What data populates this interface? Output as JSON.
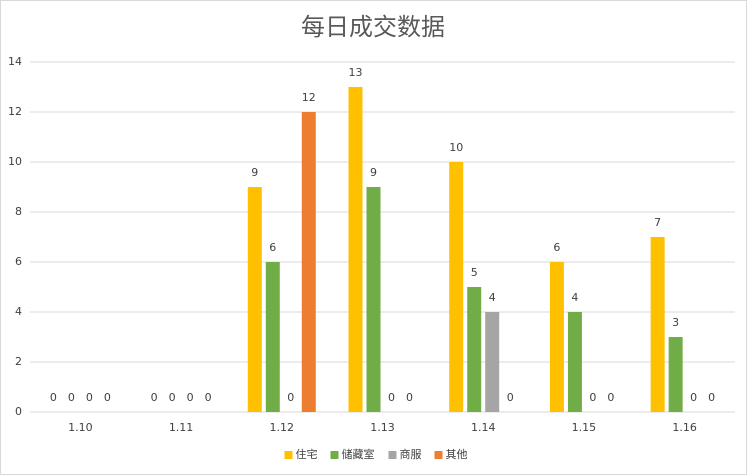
{
  "chart_data": {
    "type": "bar",
    "title": "每日成交数据",
    "categories": [
      "1.10",
      "1.11",
      "1.12",
      "1.13",
      "1.14",
      "1.15",
      "1.16"
    ],
    "series": [
      {
        "name": "住宅",
        "color": "#FFC000",
        "values": [
          0,
          0,
          9,
          13,
          10,
          6,
          7
        ]
      },
      {
        "name": "储藏室",
        "color": "#70AD47",
        "values": [
          0,
          0,
          6,
          9,
          5,
          4,
          3
        ]
      },
      {
        "name": "商服",
        "color": "#A5A5A5",
        "values": [
          0,
          0,
          0,
          0,
          4,
          0,
          0
        ]
      },
      {
        "name": "其他",
        "color": "#ED7D31",
        "values": [
          0,
          0,
          12,
          0,
          0,
          0,
          0
        ]
      }
    ],
    "ylim": [
      0,
      14
    ],
    "yticks": [
      0,
      2,
      4,
      6,
      8,
      10,
      12,
      14
    ],
    "grid": true,
    "legend": "bottom"
  }
}
